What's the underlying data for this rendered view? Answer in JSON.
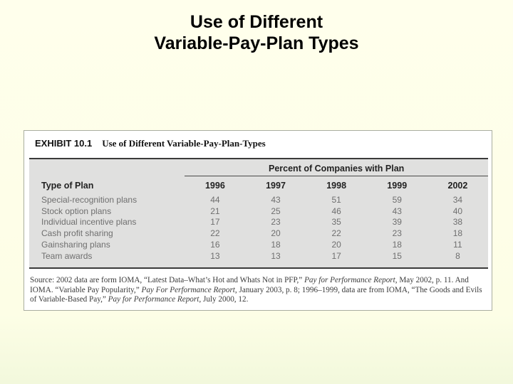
{
  "slide": {
    "title_line1": "Use of Different",
    "title_line2": "Variable-Pay-Plan Types"
  },
  "exhibit": {
    "label": "EXHIBIT 10.1",
    "title": "Use of Different Variable-Pay-Plan-Types"
  },
  "table": {
    "span_header": "Percent of Companies with Plan",
    "col_label": "Type of Plan",
    "years": [
      "1996",
      "1997",
      "1998",
      "1999",
      "2002"
    ],
    "rows": [
      {
        "label": "Special-recognition plans",
        "values": [
          "44",
          "43",
          "51",
          "59",
          "34"
        ]
      },
      {
        "label": "Stock option plans",
        "values": [
          "21",
          "25",
          "46",
          "43",
          "40"
        ]
      },
      {
        "label": "Individual incentive plans",
        "values": [
          "17",
          "23",
          "35",
          "39",
          "38"
        ]
      },
      {
        "label": "Cash profit sharing",
        "values": [
          "22",
          "20",
          "22",
          "23",
          "18"
        ]
      },
      {
        "label": "Gainsharing plans",
        "values": [
          "16",
          "18",
          "20",
          "18",
          "11"
        ]
      },
      {
        "label": "Team awards",
        "values": [
          "13",
          "13",
          "17",
          "15",
          "8"
        ]
      }
    ]
  },
  "chart_data": {
    "type": "table",
    "title": "Use of Different Variable-Pay-Plan-Types",
    "subtitle": "Percent of Companies with Plan",
    "categories": [
      "1996",
      "1997",
      "1998",
      "1999",
      "2002"
    ],
    "series": [
      {
        "name": "Special-recognition plans",
        "values": [
          44,
          43,
          51,
          59,
          34
        ]
      },
      {
        "name": "Stock option plans",
        "values": [
          21,
          25,
          46,
          43,
          40
        ]
      },
      {
        "name": "Individual incentive plans",
        "values": [
          17,
          23,
          35,
          39,
          38
        ]
      },
      {
        "name": "Cash profit sharing",
        "values": [
          22,
          20,
          22,
          23,
          18
        ]
      },
      {
        "name": "Gainsharing plans",
        "values": [
          16,
          18,
          20,
          18,
          11
        ]
      },
      {
        "name": "Team awards",
        "values": [
          13,
          13,
          17,
          15,
          8
        ]
      }
    ]
  },
  "source": {
    "t1": "Source: 2002 data are form IOMA, “Latest Data–What’s Hot and Whats Not in PFP,” ",
    "i1": "Pay for Performance Report",
    "t2": ", May 2002, p. 11. And IOMA. “Variable Pay Popularity,” ",
    "i2": "Pay For Performance Report",
    "t3": ", January 2003, p. 8; 1996–1999, data are from IOMA, “The Goods and Evils of Variable-Based Pay,” ",
    "i3": "Pay for Performance Report",
    "t4": ", July 2000, 12."
  }
}
